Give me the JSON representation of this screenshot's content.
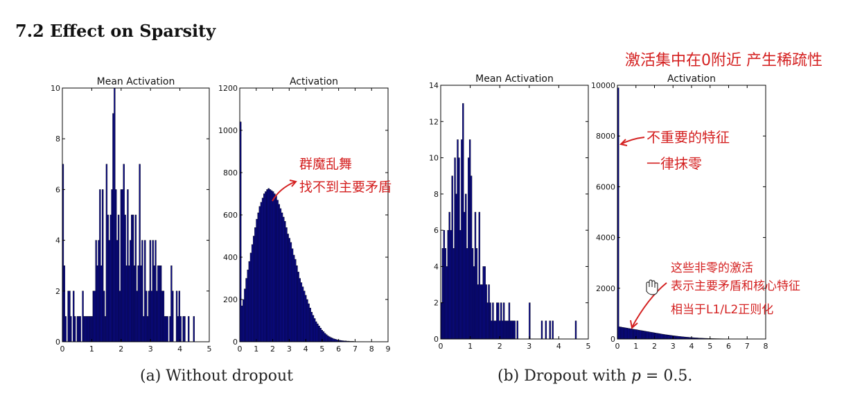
{
  "section_title": "7.2 Effect on Sparsity",
  "captions": {
    "a": "(a) Without dropout",
    "b_prefix": "(b) Dropout with ",
    "b_var": "p",
    "b_suffix": " = 0.5."
  },
  "annotations": {
    "top_right": "激活集中在0附近 产生稀疏性",
    "chaos_line1": "群魔乱舞",
    "chaos_line2": "找不到主要矛盾",
    "unimportant_line1": "不重要的特征",
    "unimportant_line2": "一律抹零",
    "nonzero_line1": "这些非零的激活",
    "nonzero_line2": "表示主要矛盾和核心特征",
    "nonzero_line3": "相当于L1/L2正则化"
  },
  "colors": {
    "bar": "#0a0a8c",
    "annotation": "#d42020"
  },
  "chart_data": [
    {
      "id": "a-mean",
      "type": "bar",
      "title": "Mean Activation",
      "xlim": [
        0,
        5
      ],
      "ylim": [
        0,
        10
      ],
      "xticks": [
        0,
        1,
        2,
        3,
        4,
        5
      ],
      "yticks": [
        0,
        2,
        4,
        6,
        8,
        10
      ],
      "bin_width": 0.045,
      "x": [
        0.0,
        0.045,
        0.09,
        0.135,
        0.18,
        0.225,
        0.27,
        0.315,
        0.36,
        0.405,
        0.45,
        0.495,
        0.54,
        0.585,
        0.63,
        0.675,
        0.72,
        0.765,
        0.81,
        0.855,
        0.9,
        0.945,
        0.99,
        1.035,
        1.08,
        1.125,
        1.17,
        1.215,
        1.26,
        1.305,
        1.35,
        1.395,
        1.44,
        1.485,
        1.53,
        1.575,
        1.62,
        1.665,
        1.71,
        1.755,
        1.8,
        1.845,
        1.89,
        1.935,
        1.98,
        2.025,
        2.07,
        2.115,
        2.16,
        2.205,
        2.25,
        2.295,
        2.34,
        2.385,
        2.43,
        2.475,
        2.52,
        2.565,
        2.61,
        2.655,
        2.7,
        2.745,
        2.79,
        2.835,
        2.88,
        2.925,
        2.97,
        3.015,
        3.06,
        3.105,
        3.15,
        3.195,
        3.24,
        3.285,
        3.33,
        3.375,
        3.42,
        3.465,
        3.51,
        3.555,
        3.6,
        3.645,
        3.69,
        3.735,
        3.78,
        3.825,
        3.87,
        3.915,
        3.96,
        4.005,
        4.05,
        4.095,
        4.14,
        4.185,
        4.23,
        4.275,
        4.32,
        4.365,
        4.41,
        4.455
      ],
      "values": [
        7,
        3,
        1,
        0,
        2,
        2,
        1,
        0,
        2,
        1,
        0,
        1,
        1,
        1,
        0,
        2,
        1,
        1,
        1,
        1,
        1,
        1,
        1,
        2,
        2,
        4,
        3,
        4,
        6,
        3,
        6,
        2,
        1,
        7,
        5,
        4,
        5,
        6,
        9,
        10,
        6,
        4,
        5,
        2,
        6,
        6,
        7,
        5,
        3,
        6,
        3,
        4,
        5,
        5,
        3,
        5,
        2,
        3,
        7,
        3,
        4,
        1,
        4,
        2,
        1,
        2,
        4,
        2,
        4,
        3,
        4,
        2,
        3,
        3,
        3,
        2,
        2,
        1,
        1,
        1,
        0,
        1,
        3,
        2,
        0,
        0,
        2,
        1,
        2,
        1,
        0,
        1,
        1,
        0,
        0,
        1,
        0,
        0,
        0,
        1
      ]
    },
    {
      "id": "a-act",
      "type": "bar",
      "title": "Activation",
      "xlim": [
        0,
        9
      ],
      "ylim": [
        0,
        1200
      ],
      "xticks": [
        0,
        1,
        2,
        3,
        4,
        5,
        6,
        7,
        8,
        9
      ],
      "yticks": [
        0,
        200,
        400,
        600,
        800,
        1000,
        1200
      ],
      "bin_width": 0.09,
      "x": [
        0.0,
        0.09,
        0.18,
        0.27,
        0.36,
        0.45,
        0.54,
        0.63,
        0.72,
        0.81,
        0.9,
        0.99,
        1.08,
        1.17,
        1.26,
        1.35,
        1.44,
        1.53,
        1.62,
        1.71,
        1.8,
        1.89,
        1.98,
        2.07,
        2.16,
        2.25,
        2.34,
        2.43,
        2.52,
        2.61,
        2.7,
        2.79,
        2.88,
        2.97,
        3.06,
        3.15,
        3.24,
        3.33,
        3.42,
        3.51,
        3.6,
        3.69,
        3.78,
        3.87,
        3.96,
        4.05,
        4.14,
        4.23,
        4.32,
        4.41,
        4.5,
        4.59,
        4.68,
        4.77,
        4.86,
        4.95,
        5.04,
        5.13,
        5.22,
        5.31,
        5.4,
        5.49,
        5.58,
        5.67,
        5.76,
        5.85,
        5.94,
        6.03,
        6.12,
        6.21,
        6.3,
        6.39,
        6.48,
        6.57,
        6.66,
        6.75,
        6.84,
        6.93,
        7.02,
        7.11,
        7.2,
        7.29,
        7.38,
        7.47,
        7.56,
        7.65,
        7.74,
        7.83,
        7.92,
        8.01,
        8.1,
        8.19,
        8.28,
        8.37,
        8.46,
        8.55,
        8.64,
        8.73,
        8.82,
        8.91
      ],
      "values": [
        1040,
        170,
        200,
        250,
        300,
        340,
        380,
        420,
        460,
        500,
        540,
        580,
        610,
        640,
        660,
        680,
        700,
        710,
        720,
        725,
        720,
        715,
        710,
        700,
        690,
        670,
        650,
        630,
        610,
        590,
        570,
        540,
        510,
        490,
        470,
        440,
        410,
        390,
        360,
        330,
        300,
        280,
        260,
        240,
        220,
        200,
        180,
        160,
        140,
        125,
        110,
        95,
        85,
        75,
        65,
        55,
        48,
        40,
        34,
        28,
        24,
        20,
        17,
        14,
        12,
        10,
        8,
        7,
        6,
        5,
        4,
        4,
        3,
        3,
        2,
        2,
        2,
        1,
        1,
        1,
        1,
        1,
        1,
        1,
        0,
        0,
        0,
        0,
        1,
        0,
        0,
        0,
        0,
        0,
        0,
        0,
        0,
        0,
        0,
        0
      ]
    },
    {
      "id": "b-mean",
      "type": "bar",
      "title": "Mean Activation",
      "xlim": [
        0,
        5
      ],
      "ylim": [
        0,
        14
      ],
      "xticks": [
        0,
        1,
        2,
        3,
        4,
        5
      ],
      "yticks": [
        0,
        2,
        4,
        6,
        8,
        10,
        12,
        14
      ],
      "bin_width": 0.046,
      "x": [
        0.0,
        0.046,
        0.092,
        0.138,
        0.184,
        0.23,
        0.276,
        0.322,
        0.368,
        0.414,
        0.46,
        0.506,
        0.552,
        0.598,
        0.644,
        0.69,
        0.736,
        0.782,
        0.828,
        0.874,
        0.92,
        0.966,
        1.012,
        1.058,
        1.104,
        1.15,
        1.196,
        1.242,
        1.288,
        1.334,
        1.38,
        1.426,
        1.472,
        1.518,
        1.564,
        1.61,
        1.656,
        1.702,
        1.748,
        1.794,
        1.84,
        1.886,
        1.932,
        1.978,
        2.024,
        2.07,
        2.116,
        2.162,
        2.208,
        2.254,
        2.3,
        2.346,
        2.392,
        2.438,
        2.484,
        2.53,
        2.576,
        2.622,
        2.668,
        2.714,
        2.76,
        2.806,
        2.852,
        2.898,
        2.944,
        2.99,
        3.036,
        3.082,
        3.128,
        3.174,
        3.22,
        3.266,
        3.312,
        3.358,
        3.404,
        3.45,
        3.496,
        3.542,
        3.588,
        3.634,
        3.68,
        3.726,
        3.772,
        3.818,
        3.864,
        3.91,
        3.956,
        4.002,
        4.048,
        4.094,
        4.14,
        4.186,
        4.232,
        4.278,
        4.324,
        4.37,
        4.416,
        4.462,
        4.508,
        4.554
      ],
      "values": [
        2,
        5,
        6,
        5,
        4,
        6,
        7,
        6,
        9,
        5,
        10,
        8,
        11,
        10,
        6,
        11,
        13,
        7,
        8,
        5,
        10,
        11,
        9,
        5,
        4,
        7,
        5,
        3,
        7,
        3,
        3,
        4,
        4,
        3,
        2,
        3,
        2,
        1,
        2,
        1,
        1,
        2,
        2,
        1,
        2,
        1,
        2,
        1,
        1,
        1,
        2,
        1,
        1,
        1,
        1,
        0,
        1,
        0,
        0,
        0,
        0,
        0,
        0,
        0,
        0,
        2,
        0,
        0,
        0,
        0,
        0,
        0,
        0,
        0,
        1,
        0,
        0,
        1,
        0,
        0,
        1,
        0,
        1,
        0,
        0,
        0,
        0,
        0,
        0,
        0,
        0,
        0,
        0,
        0,
        0,
        0,
        0,
        0,
        0,
        1
      ]
    },
    {
      "id": "b-act",
      "type": "bar",
      "title": "Activation",
      "xlim": [
        0,
        8
      ],
      "ylim": [
        0,
        10000
      ],
      "xticks": [
        0,
        1,
        2,
        3,
        4,
        5,
        6,
        7,
        8
      ],
      "yticks": [
        0,
        2000,
        4000,
        6000,
        8000,
        10000
      ],
      "bin_width": 0.08,
      "x": [
        0.0,
        0.08,
        0.16,
        0.24,
        0.32,
        0.4,
        0.48,
        0.56,
        0.64,
        0.72,
        0.8,
        0.88,
        0.96,
        1.04,
        1.12,
        1.2,
        1.28,
        1.36,
        1.44,
        1.52,
        1.6,
        1.68,
        1.76,
        1.84,
        1.92,
        2.0,
        2.08,
        2.16,
        2.24,
        2.32,
        2.4,
        2.48,
        2.56,
        2.64,
        2.72,
        2.8,
        2.88,
        2.96,
        3.04,
        3.12,
        3.2,
        3.28,
        3.36,
        3.44,
        3.52,
        3.6,
        3.68,
        3.76,
        3.84,
        3.92,
        4.0,
        4.08,
        4.16,
        4.24,
        4.32,
        4.4,
        4.48,
        4.56,
        4.64,
        4.72,
        4.8,
        4.88,
        4.96,
        5.04,
        5.12,
        5.2,
        5.28,
        5.36,
        5.44,
        5.52,
        5.6,
        5.68,
        5.76,
        5.84,
        5.92,
        6.0,
        6.08,
        6.16,
        6.24,
        6.32,
        6.4,
        6.48,
        6.56,
        6.64,
        6.72,
        6.8,
        6.88,
        6.96,
        7.04,
        7.12,
        7.2,
        7.28,
        7.36,
        7.44,
        7.52,
        7.6,
        7.68,
        7.76,
        7.84,
        7.92
      ],
      "values": [
        9900,
        480,
        470,
        460,
        450,
        440,
        430,
        420,
        410,
        400,
        390,
        380,
        370,
        360,
        350,
        340,
        330,
        320,
        310,
        300,
        290,
        280,
        270,
        260,
        250,
        240,
        230,
        220,
        210,
        200,
        190,
        180,
        172,
        164,
        156,
        148,
        140,
        132,
        125,
        118,
        111,
        104,
        98,
        92,
        86,
        80,
        75,
        70,
        65,
        60,
        56,
        52,
        48,
        44,
        40,
        37,
        34,
        31,
        28,
        26,
        24,
        22,
        20,
        18,
        16,
        15,
        14,
        13,
        12,
        11,
        10,
        9,
        8,
        7,
        6,
        5,
        5,
        4,
        4,
        3,
        3,
        3,
        2,
        2,
        2,
        2,
        1,
        1,
        1,
        1,
        1,
        1,
        1,
        1,
        1,
        0,
        0,
        0,
        0,
        0
      ]
    }
  ]
}
